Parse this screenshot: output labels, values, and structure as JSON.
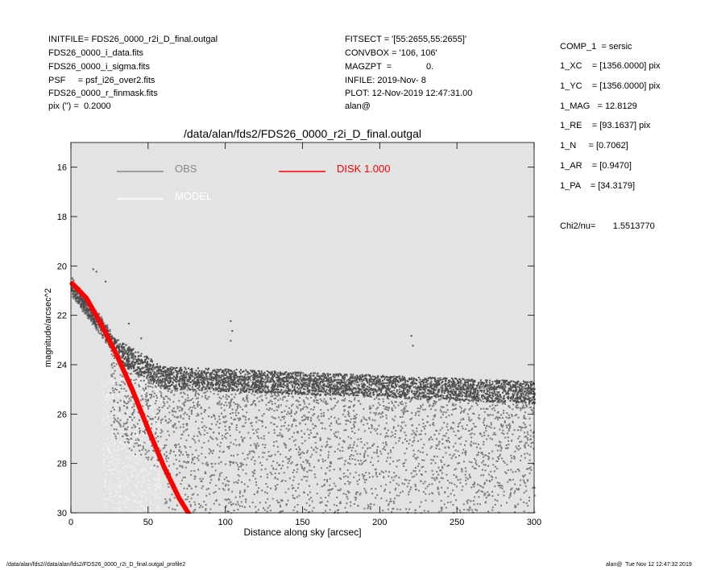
{
  "header_left": [
    "INITFILE= FDS26_0000_r2i_D_final.outgal",
    "FDS26_0000_i_data.fits",
    "FDS26_0000_i_sigma.fits",
    "PSF     = psf_i26_over2.fits",
    "FDS26_0000_r_finmask.fits",
    "pix (\") =  0.2000"
  ],
  "header_mid": [
    "FITSECT = '[55:2655,55:2655]'",
    "CONVBOX = '106, 106'",
    "MAGZPT  =              0.",
    "INFILE: 2019-Nov- 8",
    "PLOT: 12-Nov-2019 12:47:31.00",
    "alan@"
  ],
  "params": [
    "COMP_1  = sersic",
    "1_XC    = [1356.0000] pix",
    "1_YC    = [1356.0000] pix",
    "1_MAG   = 12.8129",
    "1_RE    = [93.1637] pix",
    "1_N     = [0.7062]",
    "1_AR    = [0.9470]",
    "1_PA    = [34.3179]"
  ],
  "chi2": "Chi2/nu=       1.5513770",
  "footer_left": "/data/alan/fds2//data/alan/fds2/FDS26_0000_r2i_D_final.outgal_profile2",
  "footer_right": "alan@  Tue Nov 12 12:47:32 2019",
  "colors": {
    "plot_bg": "#e3e3e3",
    "obs_dark": "#4d4d4d",
    "obs_mid": "#7a7a7a",
    "obs_light": "#f4f4f4",
    "model": "#ffffff",
    "disk": "#ff0000"
  },
  "chart_data": {
    "type": "scatter",
    "title": "/data/alan/fds2/FDS26_0000_r2i_D_final.outgal",
    "xlabel": "Distance along sky [arcsec]",
    "ylabel": "magnitude/arcsec^2",
    "xlim": [
      0,
      300
    ],
    "ylim": [
      30,
      15
    ],
    "y_inverted": true,
    "xticks": [
      0,
      50,
      100,
      150,
      200,
      250,
      300
    ],
    "yticks": [
      16,
      18,
      20,
      22,
      24,
      26,
      28,
      30
    ],
    "legend": [
      {
        "label": "OBS",
        "color": "#888888"
      },
      {
        "label": "MODEL",
        "color": "#ffffff"
      },
      {
        "label": "DISK  1.000",
        "color": "#ff0000"
      }
    ],
    "legend_position": "top",
    "series": [
      {
        "name": "OBS",
        "kind": "scatter",
        "description_points": [
          [
            0,
            20.8
          ],
          [
            10,
            21.2
          ],
          [
            20,
            22.4
          ],
          [
            30,
            23.5
          ],
          [
            40,
            24.1
          ],
          [
            50,
            24.5
          ],
          [
            75,
            24.8
          ],
          [
            100,
            24.8
          ],
          [
            150,
            24.9
          ],
          [
            200,
            25.0
          ],
          [
            250,
            25.1
          ],
          [
            300,
            25.3
          ]
        ]
      },
      {
        "name": "MODEL",
        "kind": "line",
        "x": [
          0,
          10,
          20,
          30,
          40,
          50,
          60,
          70,
          80
        ],
        "y": [
          20.55,
          21.2,
          22.3,
          23.55,
          24.95,
          26.5,
          28.0,
          29.3,
          30.3
        ]
      },
      {
        "name": "DISK  1.000",
        "kind": "line",
        "x": [
          0,
          10,
          20,
          30,
          40,
          50,
          60,
          70,
          80
        ],
        "y": [
          20.65,
          21.3,
          22.4,
          23.65,
          25.05,
          26.6,
          28.1,
          29.4,
          30.4
        ]
      }
    ]
  }
}
